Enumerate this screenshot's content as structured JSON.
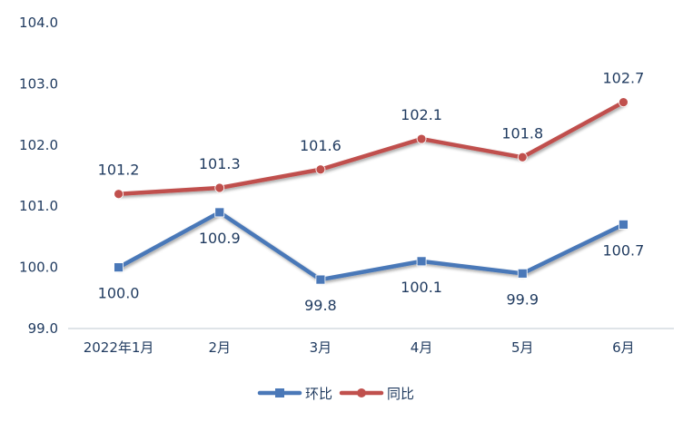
{
  "chart_data": {
    "type": "line",
    "categories": [
      "2022年1月",
      "2月",
      "3月",
      "4月",
      "5月",
      "6月"
    ],
    "ylim": [
      99.0,
      104.0
    ],
    "yticks": [
      "99.0",
      "100.0",
      "101.0",
      "102.0",
      "103.0",
      "104.0"
    ],
    "grid": false,
    "legend_position": "bottom",
    "series": [
      {
        "name": "环比",
        "values": [
          100.0,
          100.9,
          99.8,
          100.1,
          99.9,
          100.7
        ],
        "labels": [
          "100.0",
          "100.9",
          "99.8",
          "100.1",
          "99.9",
          "100.7"
        ],
        "color": "#4a78b8",
        "marker": "square",
        "label_position": "below"
      },
      {
        "name": "同比",
        "values": [
          101.2,
          101.3,
          101.6,
          102.1,
          101.8,
          102.7
        ],
        "labels": [
          "101.2",
          "101.3",
          "101.6",
          "102.1",
          "101.8",
          "102.7"
        ],
        "color": "#c0504d",
        "marker": "circle",
        "label_position": "above"
      }
    ]
  }
}
